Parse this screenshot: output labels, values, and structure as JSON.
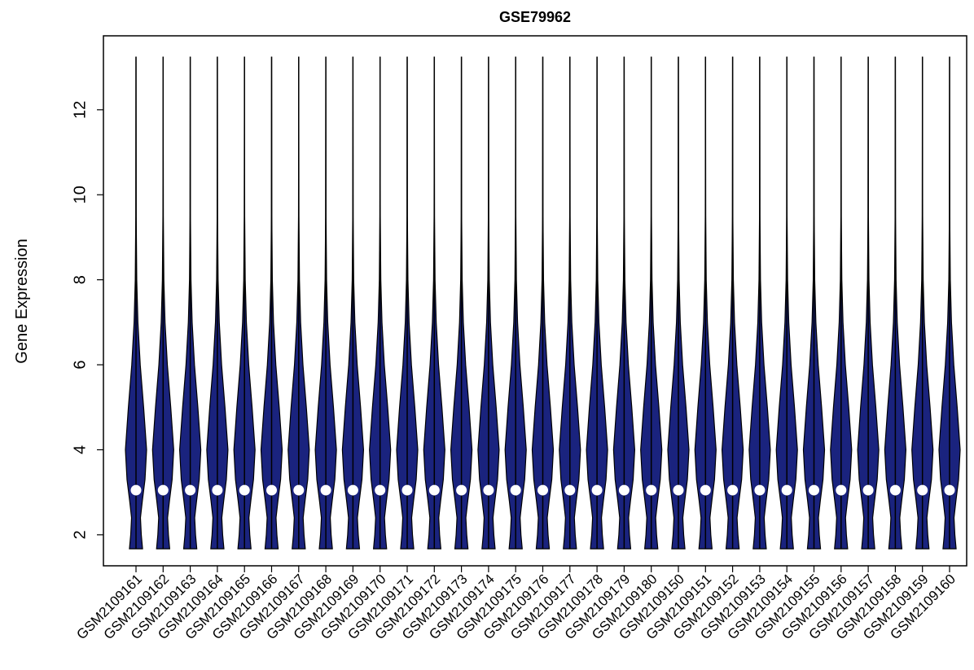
{
  "chart_data": {
    "type": "violin",
    "title": "GSE79962",
    "y_label": "Gene Expression",
    "categories": [
      "GSM2109161",
      "GSM2109162",
      "GSM2109163",
      "GSM2109164",
      "GSM2109165",
      "GSM2109166",
      "GSM2109167",
      "GSM2109168",
      "GSM2109169",
      "GSM2109170",
      "GSM2109171",
      "GSM2109172",
      "GSM2109173",
      "GSM2109174",
      "GSM2109175",
      "GSM2109176",
      "GSM2109177",
      "GSM2109178",
      "GSM2109179",
      "GSM2109180",
      "GSM2109150",
      "GSM2109151",
      "GSM2109152",
      "GSM2109153",
      "GSM2109154",
      "GSM2109155",
      "GSM2109156",
      "GSM2109157",
      "GSM2109158",
      "GSM2109159",
      "GSM2109160"
    ],
    "min": [
      1.67,
      1.67,
      1.67,
      1.67,
      1.67,
      1.67,
      1.67,
      1.67,
      1.67,
      1.67,
      1.67,
      1.67,
      1.67,
      1.67,
      1.67,
      1.67,
      1.67,
      1.67,
      1.67,
      1.67,
      1.67,
      1.67,
      1.67,
      1.67,
      1.67,
      1.67,
      1.67,
      1.67,
      1.67,
      1.67,
      1.67
    ],
    "median": [
      3.05,
      3.05,
      3.05,
      3.05,
      3.05,
      3.05,
      3.05,
      3.05,
      3.05,
      3.05,
      3.05,
      3.05,
      3.05,
      3.05,
      3.05,
      3.05,
      3.05,
      3.05,
      3.05,
      3.05,
      3.05,
      3.05,
      3.05,
      3.05,
      3.05,
      3.05,
      3.05,
      3.05,
      3.05,
      3.05,
      3.05
    ],
    "max": [
      13.25,
      13.25,
      13.25,
      13.25,
      13.25,
      13.25,
      13.25,
      13.25,
      13.25,
      13.25,
      13.25,
      13.25,
      13.25,
      13.25,
      13.25,
      13.25,
      13.25,
      13.25,
      13.25,
      13.25,
      13.25,
      13.25,
      13.25,
      13.25,
      13.25,
      13.25,
      13.25,
      13.25,
      13.25,
      13.25,
      13.25
    ],
    "density": {
      "y": [
        1.67,
        2.0,
        2.4,
        2.8,
        3.3,
        4.0,
        5.0,
        6.0,
        7.0,
        8.0,
        9.5
      ],
      "width": [
        0.62,
        0.5,
        0.42,
        0.6,
        0.85,
        1.0,
        0.72,
        0.4,
        0.18,
        0.07,
        0.02
      ]
    },
    "color": "#1a237e",
    "median_color": "#ffffff",
    "ylim": [
      1.27,
      13.74
    ],
    "yticks": [
      2,
      4,
      6,
      8,
      10,
      12
    ]
  }
}
